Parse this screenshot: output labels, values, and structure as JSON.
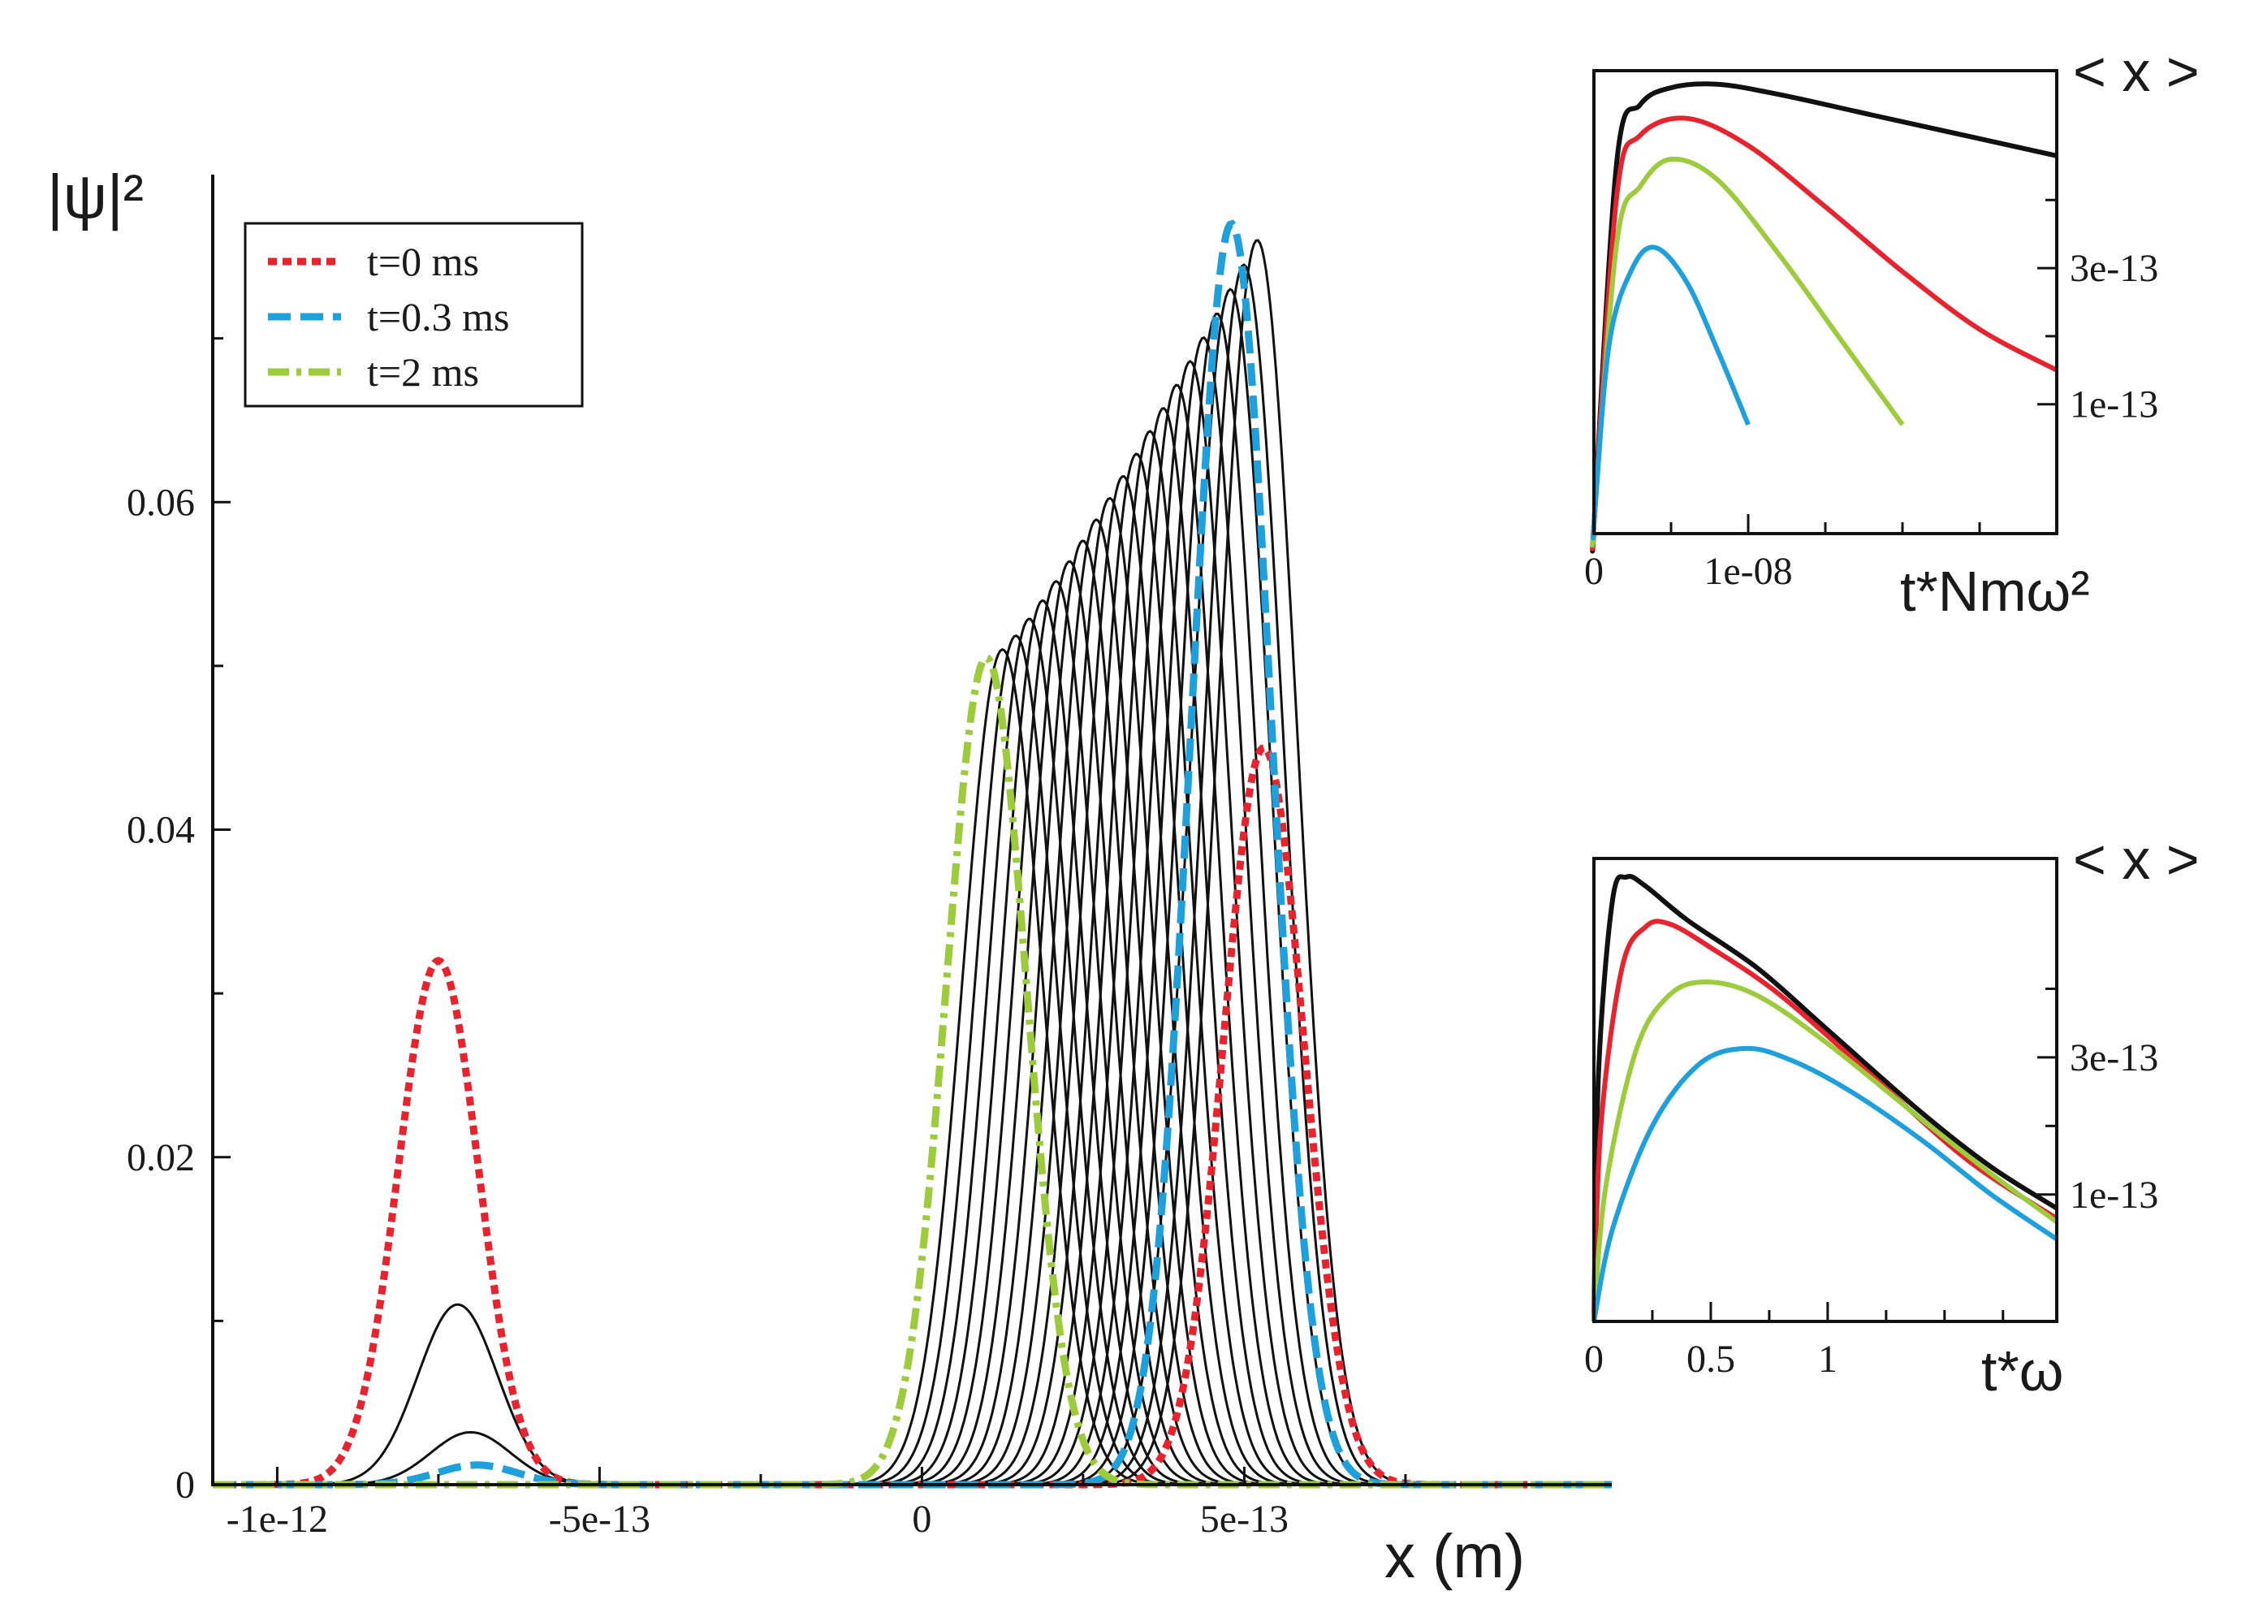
{
  "chart_data": [
    {
      "type": "line",
      "id": "main",
      "ylabel": "|ψ|²",
      "xlabel": "x (m)",
      "x_ticks": [
        {
          "value": -1e-12,
          "label": "-1e-12"
        },
        {
          "value": -5e-13,
          "label": "-5e-13"
        },
        {
          "value": 0,
          "label": "0"
        },
        {
          "value": 5e-13,
          "label": "5e-13"
        }
      ],
      "y_ticks": [
        {
          "value": 0,
          "label": "0"
        },
        {
          "value": 0.02,
          "label": "0.02"
        },
        {
          "value": 0.04,
          "label": "0.04"
        },
        {
          "value": 0.06,
          "label": "0.06"
        }
      ],
      "xlim": [
        -1.1e-12,
        1.07e-12
      ],
      "ylim": [
        0,
        0.08
      ],
      "legend": {
        "position": "top-left",
        "entries": [
          {
            "label": "t=0 ms",
            "color": "#e8232d",
            "style": "dotted"
          },
          {
            "label": "t=0.3 ms",
            "color": "#1ea0dc",
            "style": "dashed"
          },
          {
            "label": "t=2 ms",
            "color": "#9ccb3b",
            "style": "dash-dot"
          }
        ]
      },
      "series": [
        {
          "name": "t=0 ms",
          "color": "#e8232d",
          "style": "dotted",
          "peaks": [
            {
              "center": -7.5e-13,
              "height": 0.032,
              "width": 6.2e-14
            },
            {
              "center": 5.3e-13,
              "height": 0.045,
              "width": 6.2e-14
            }
          ]
        },
        {
          "name": "t=0.3 ms",
          "color": "#1ea0dc",
          "style": "dashed",
          "peaks": [
            {
              "center": -6.9e-13,
              "height": 0.0012,
              "width": 6.2e-14
            },
            {
              "center": 4.8e-13,
              "height": 0.077,
              "width": 6.2e-14
            }
          ]
        },
        {
          "name": "t=2 ms",
          "color": "#9ccb3b",
          "style": "dash-dot",
          "peaks": [
            {
              "center": 1e-13,
              "height": 0.0505,
              "width": 6.2e-14
            }
          ]
        }
      ],
      "intermediate_left_peaks": [
        {
          "center": -7.2e-13,
          "height": 0.011,
          "width": 6.2e-14
        },
        {
          "center": -7e-13,
          "height": 0.0032,
          "width": 6.2e-14
        }
      ],
      "intermediate_right_peaks": {
        "count": 20,
        "center_start": 1.25e-13,
        "center_end": 5.2e-13,
        "height_start": 0.051,
        "height_end": 0.076,
        "width": 6.2e-14
      }
    },
    {
      "type": "line",
      "id": "inset_top",
      "xlabel": "t*Nmω²",
      "ylabel": "< x >",
      "x_ticks": [
        {
          "value": 0,
          "label": "0"
        },
        {
          "value": 1e-08,
          "label": "1e-08"
        }
      ],
      "y_ticks": [
        {
          "value": 1e-13,
          "label": "1e-13"
        },
        {
          "value": 3e-13,
          "label": "3e-13"
        }
      ],
      "xlim": [
        0,
        3e-08
      ],
      "ylim": [
        -9e-14,
        5.9e-13
      ],
      "series": [
        {
          "name": "black",
          "color": "#111111",
          "x": [
            0,
            2e-11,
            1.5e-09,
            3e-09,
            5e-09,
            8e-09,
            1.2e-08,
            1.8e-08,
            2.4e-08,
            3e-08
          ],
          "y": [
            -9e-14,
            -7e-14,
            4.6e-13,
            5.4e-13,
            5.65e-13,
            5.7e-13,
            5.55e-13,
            5.25e-13,
            4.95e-13,
            4.65e-13
          ]
        },
        {
          "name": "red",
          "color": "#e8232d",
          "x": [
            0,
            2e-11,
            1.5e-09,
            3e-09,
            6e-09,
            1e-08,
            1.5e-08,
            2e-08,
            2.5e-08,
            3e-08
          ],
          "y": [
            -9e-14,
            -7e-14,
            4.1e-13,
            4.95e-13,
            5.2e-13,
            4.8e-13,
            3.9e-13,
            2.95e-13,
            2.1e-13,
            1.5e-13
          ]
        },
        {
          "name": "green",
          "color": "#9ccb3b",
          "x": [
            0,
            2e-11,
            1.5e-09,
            3e-09,
            5e-09,
            8e-09,
            1.2e-08,
            1.6e-08,
            2e-08
          ],
          "y": [
            -9e-14,
            -7e-14,
            3.4e-13,
            4.2e-13,
            4.6e-13,
            4.3e-13,
            3.2e-13,
            1.95e-13,
            7e-14
          ]
        },
        {
          "name": "blue",
          "color": "#1ea0dc",
          "x": [
            0,
            2e-11,
            1e-09,
            2.5e-09,
            4e-09,
            6e-09,
            8e-09,
            1e-08
          ],
          "y": [
            -9e-14,
            -7e-14,
            1.9e-13,
            3e-13,
            3.3e-13,
            2.8e-13,
            1.8e-13,
            7e-14
          ]
        }
      ]
    },
    {
      "type": "line",
      "id": "inset_bottom",
      "xlabel": "t*ω",
      "ylabel": "< x >",
      "x_ticks": [
        {
          "value": 0,
          "label": "0"
        },
        {
          "value": 0.5,
          "label": "0.5"
        },
        {
          "value": 1,
          "label": "1"
        }
      ],
      "y_ticks": [
        {
          "value": 1e-13,
          "label": "1e-13"
        },
        {
          "value": 3e-13,
          "label": "3e-13"
        }
      ],
      "xlim": [
        0,
        1.98
      ],
      "ylim": [
        -8.5e-14,
        5.9e-13
      ],
      "series": [
        {
          "name": "black",
          "color": "#111111",
          "x": [
            0,
            0.02,
            0.08,
            0.14,
            0.22,
            0.4,
            0.7,
            1.0,
            1.4,
            1.7,
            1.98
          ],
          "y": [
            -8.5e-14,
            2.8e-13,
            5.3e-13,
            5.63e-13,
            5.5e-13,
            5e-13,
            4.3e-13,
            3.4e-13,
            2.2e-13,
            1.4e-13,
            8e-14
          ]
        },
        {
          "name": "red",
          "color": "#e8232d",
          "x": [
            0,
            0.03,
            0.12,
            0.22,
            0.32,
            0.5,
            0.8,
            1.2,
            1.6,
            1.98
          ],
          "y": [
            -8.5e-14,
            2e-13,
            4.3e-13,
            4.9e-13,
            4.95e-13,
            4.6e-13,
            3.9e-13,
            2.7e-13,
            1.5e-13,
            6.5e-14
          ]
        },
        {
          "name": "green",
          "color": "#9ccb3b",
          "x": [
            0,
            0.05,
            0.18,
            0.32,
            0.48,
            0.7,
            1.0,
            1.4,
            1.7,
            1.98
          ],
          "y": [
            -8.5e-14,
            1.1e-13,
            3.1e-13,
            3.9e-13,
            4.1e-13,
            3.9e-13,
            3.2e-13,
            2.1e-13,
            1.3e-13,
            6e-14
          ]
        },
        {
          "name": "blue",
          "color": "#1ea0dc",
          "x": [
            0,
            0.08,
            0.25,
            0.45,
            0.65,
            0.85,
            1.1,
            1.4,
            1.7,
            1.98
          ],
          "y": [
            -8.5e-14,
            5e-14,
            2e-13,
            2.9e-13,
            3.13e-13,
            2.95e-13,
            2.5e-13,
            1.8e-13,
            1e-13,
            3.5e-14
          ]
        }
      ]
    }
  ]
}
